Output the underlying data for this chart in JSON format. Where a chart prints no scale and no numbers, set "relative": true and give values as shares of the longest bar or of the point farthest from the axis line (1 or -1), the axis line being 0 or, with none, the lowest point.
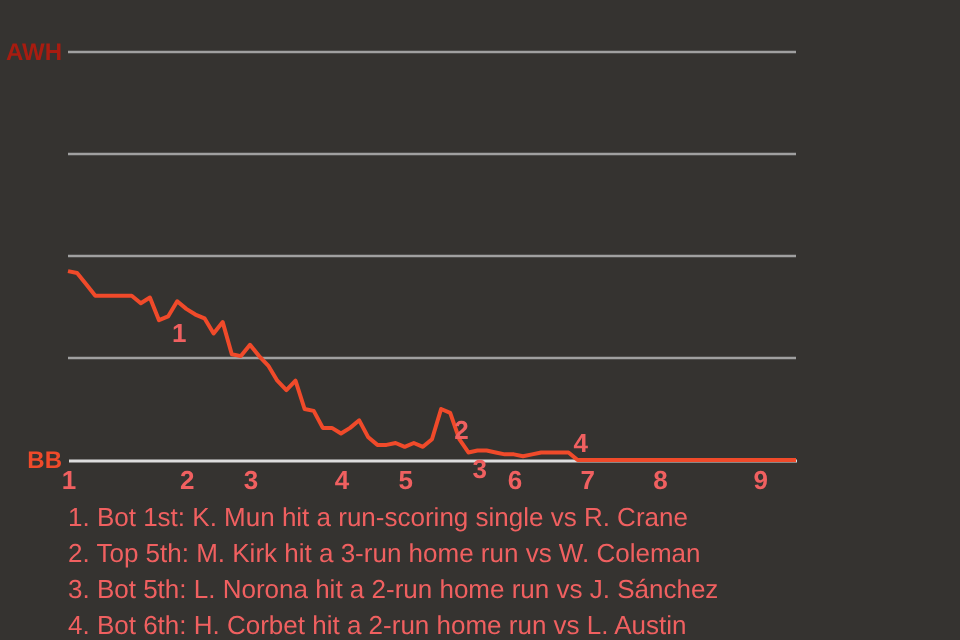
{
  "chart_data": {
    "type": "line",
    "relative": true,
    "categories": [
      "1",
      null,
      null,
      null,
      null,
      null,
      null,
      null,
      null,
      null,
      null,
      null,
      null,
      "2",
      null,
      null,
      null,
      null,
      null,
      null,
      "3",
      null,
      null,
      null,
      null,
      null,
      null,
      null,
      null,
      null,
      "4",
      null,
      null,
      null,
      null,
      null,
      null,
      "5",
      null,
      null,
      null,
      null,
      null,
      null,
      null,
      null,
      null,
      null,
      null,
      "6",
      null,
      null,
      null,
      null,
      null,
      null,
      null,
      "7",
      null,
      null,
      null,
      null,
      null,
      null,
      null,
      "8",
      null,
      null,
      null,
      null,
      null,
      null,
      null,
      null,
      null,
      null,
      "9",
      null,
      null,
      null,
      null
    ],
    "series": [
      {
        "color": "#f04a2a",
        "values": [
          1,
          0.99,
          0.93,
          0.87,
          0.87,
          0.87,
          0.87,
          0.87,
          0.83,
          0.86,
          0.74,
          0.76,
          0.84,
          0.8,
          0.77,
          0.75,
          0.67,
          0.73,
          0.56,
          0.55,
          0.61,
          0.55,
          0.5,
          0.42,
          0.37,
          0.42,
          0.27,
          0.26,
          0.17,
          0.17,
          0.14,
          0.17,
          0.21,
          0.12,
          0.08,
          0.08,
          0.09,
          0.07,
          0.09,
          0.07,
          0.11,
          0.27,
          0.25,
          0.11,
          0.04,
          0.05,
          0.05,
          0.04,
          0.03,
          0.03,
          0.02,
          0.03,
          0.04,
          0.04,
          0.04,
          0.04,
          0,
          0,
          0,
          0,
          0,
          0,
          0,
          0,
          0,
          0,
          0,
          0,
          0,
          0,
          0,
          0,
          0,
          0,
          0,
          0,
          0,
          0,
          0,
          0,
          0
        ]
      }
    ],
    "ref_lines": [
      {
        "axis": "y",
        "value": 0.54,
        "color": "#a0a0a0"
      },
      {
        "axis": "y",
        "value": 1.08,
        "color": "#a0a0a0"
      },
      {
        "axis": "y",
        "value": 1.62,
        "color": "#a0a0a0"
      },
      {
        "axis": "y",
        "value": 2.16,
        "color": "#a0a0a0"
      }
    ],
    "annotations": [
      "AWH",
      "BB",
      {
        "text": "1",
        "y": 0.76
      },
      {
        "text": "2",
        "y": 0.25
      },
      {
        "text": "3",
        "y": 0.04
      },
      {
        "text": "4",
        "y": 0
      },
      "1. Bot 1st: K. Mun hit a run-scoring single vs R. Crane",
      "2. Top 5th: M. Kirk hit a 3-run home run vs W. Coleman",
      "3. Bot 5th: L. Norona hit a 2-run home run vs J. Sánchez",
      "4. Bot 6th: H. Corbet hit a 2-run home run vs L. Austin"
    ]
  }
}
